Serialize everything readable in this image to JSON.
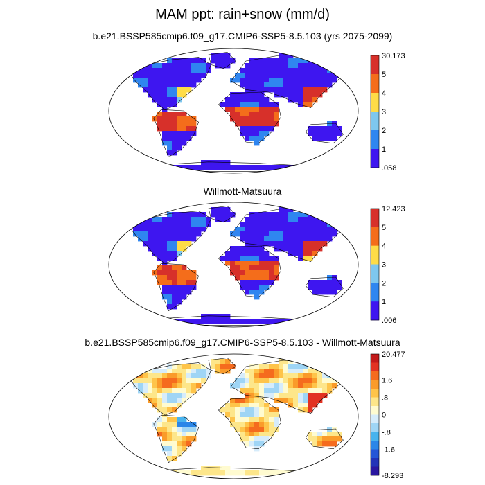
{
  "title": "MAM ppt: rain+snow (mm/d)",
  "panels": [
    {
      "id": "model",
      "title": "b.e21.BSSP585cmip6.f09_g17.CMIP6-SSP5-8.5.103 (yrs 2075-2099)",
      "colorbar": {
        "levels": [
          "30.173",
          "5",
          "4",
          "3",
          "2",
          "1",
          ".058"
        ],
        "colors": [
          "#d7302a",
          "#f46d1b",
          "#fedc47",
          "#7ec7ee",
          "#2f86f0",
          "#3e16f0"
        ]
      }
    },
    {
      "id": "observed",
      "title": "Willmott-Matsuura",
      "colorbar": {
        "levels": [
          "12.423",
          "5",
          "4",
          "3",
          "2",
          "1",
          ".006"
        ],
        "colors": [
          "#d7302a",
          "#f46d1b",
          "#fedc47",
          "#7ec7ee",
          "#2f86f0",
          "#3e16f0"
        ]
      }
    },
    {
      "id": "difference",
      "title": "b.e21.BSSP585cmip6.f09_g17.CMIP6-SSP5-8.5.103 - Willmott-Matsuura",
      "colorbar": {
        "labels": [
          "20.477",
          "1.6",
          ".8",
          "0",
          "-.8",
          "-1.6",
          "-8.293"
        ],
        "colors": [
          "#c21a1a",
          "#e23222",
          "#f56b1e",
          "#fa9b2a",
          "#fec44a",
          "#fde68a",
          "#fffbd0",
          "#d6ecfb",
          "#9fd5f5",
          "#48b3ee",
          "#2a86e8",
          "#2556d6",
          "#2233b8",
          "#2a17a0"
        ]
      }
    }
  ]
}
